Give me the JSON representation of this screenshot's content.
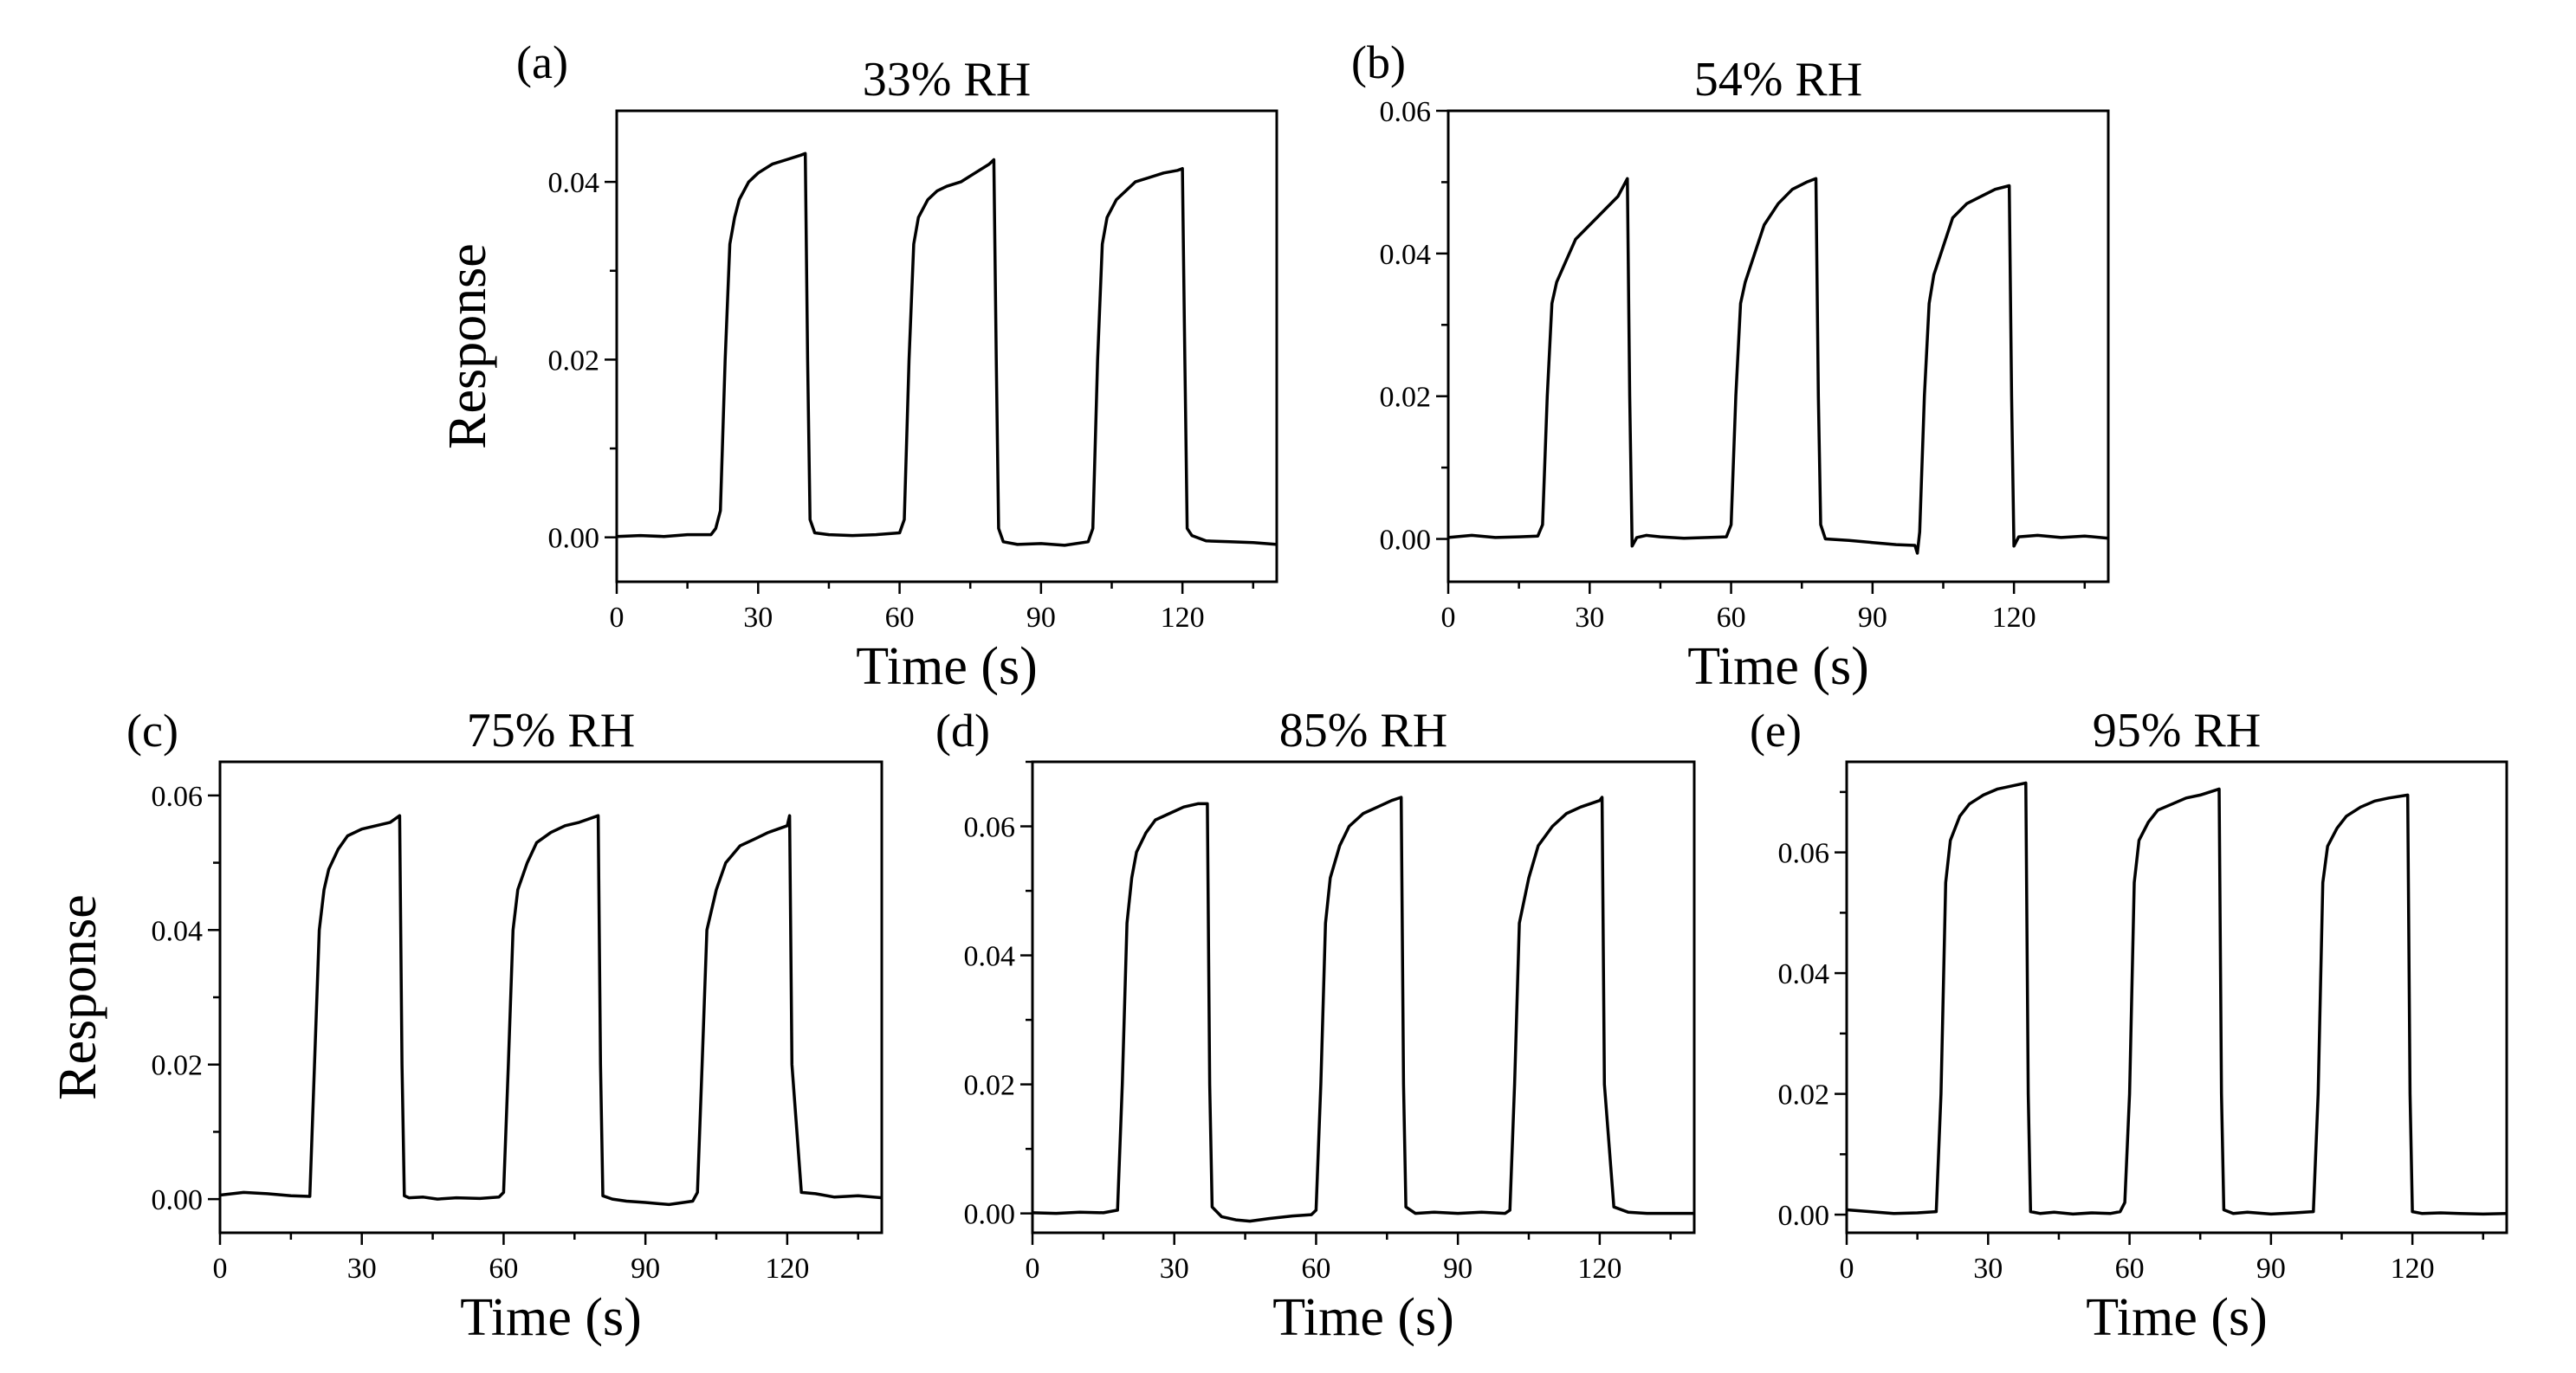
{
  "figure": {
    "description_hidden": true
  },
  "chart_data": [
    {
      "panel": "(a)",
      "type": "line",
      "title": "33% RH",
      "xlabel": "Time (s)",
      "ylabel": "Response",
      "xlim": [
        0,
        140
      ],
      "ylim": [
        -0.005,
        0.048
      ],
      "xticks": [
        0,
        30,
        60,
        90,
        120
      ],
      "yticks": [
        0.0,
        0.02,
        0.04
      ],
      "ytick_labels": [
        "0.00",
        "0.02",
        "0.04"
      ],
      "series": [
        {
          "name": "33% RH",
          "x": [
            0,
            5,
            10,
            15,
            20,
            21,
            22,
            23,
            24,
            25,
            26,
            28,
            30,
            33,
            36,
            39,
            40,
            40.5,
            41,
            42,
            45,
            50,
            55,
            60,
            61,
            62,
            63,
            64,
            66,
            68,
            70,
            73,
            76,
            79,
            80,
            80.5,
            81,
            82,
            85,
            90,
            95,
            100,
            101,
            102,
            103,
            104,
            106,
            108,
            110,
            113,
            116,
            119,
            120,
            120.5,
            121,
            122,
            125,
            130,
            135,
            140
          ],
          "y": [
            0.0001,
            0.0002,
            0.0001,
            0.0003,
            0.0003,
            0.001,
            0.003,
            0.02,
            0.033,
            0.036,
            0.038,
            0.04,
            0.041,
            0.042,
            0.0425,
            0.043,
            0.0432,
            0.02,
            0.002,
            0.0005,
            0.0003,
            0.0002,
            0.0003,
            0.0005,
            0.002,
            0.02,
            0.033,
            0.036,
            0.038,
            0.039,
            0.0395,
            0.04,
            0.041,
            0.042,
            0.0425,
            0.02,
            0.001,
            -0.0005,
            -0.0008,
            -0.0007,
            -0.0009,
            -0.0005,
            0.001,
            0.02,
            0.033,
            0.036,
            0.038,
            0.039,
            0.04,
            0.0405,
            0.041,
            0.0413,
            0.0415,
            0.02,
            0.001,
            0.0002,
            -0.0004,
            -0.0005,
            -0.0006,
            -0.0008
          ]
        }
      ]
    },
    {
      "panel": "(b)",
      "type": "line",
      "title": "54% RH",
      "xlabel": "Time (s)",
      "ylabel": "",
      "xlim": [
        0,
        140
      ],
      "ylim": [
        -0.006,
        0.06
      ],
      "xticks": [
        0,
        30,
        60,
        90,
        120
      ],
      "yticks": [
        0.0,
        0.02,
        0.04,
        0.06
      ],
      "ytick_labels": [
        "0.00",
        "0.02",
        "0.04",
        "0.06"
      ],
      "series": [
        {
          "name": "54% RH",
          "x": [
            0,
            5,
            10,
            15,
            19,
            20,
            21,
            22,
            23,
            25,
            27,
            30,
            33,
            36,
            38,
            38.5,
            39,
            40,
            42,
            45,
            50,
            55,
            59,
            60,
            61,
            62,
            63,
            65,
            67,
            70,
            73,
            76,
            78,
            78.5,
            79,
            80,
            85,
            90,
            95,
            99,
            99.5,
            100,
            101,
            102,
            103,
            105,
            107,
            110,
            113,
            116,
            119,
            119.5,
            120,
            121,
            125,
            130,
            135,
            140
          ],
          "y": [
            0.0002,
            0.0005,
            0.0002,
            0.0003,
            0.0004,
            0.002,
            0.02,
            0.033,
            0.036,
            0.039,
            0.042,
            0.044,
            0.046,
            0.048,
            0.0505,
            0.02,
            -0.001,
            0.0002,
            0.0005,
            0.0003,
            0.0001,
            0.0002,
            0.0003,
            0.002,
            0.02,
            0.033,
            0.036,
            0.04,
            0.044,
            0.047,
            0.049,
            0.05,
            0.0505,
            0.02,
            0.002,
            0.0,
            -0.0002,
            -0.0005,
            -0.0008,
            -0.0009,
            -0.002,
            0.001,
            0.02,
            0.033,
            0.037,
            0.041,
            0.045,
            0.047,
            0.048,
            0.049,
            0.0495,
            0.02,
            -0.001,
            0.0003,
            0.0005,
            0.0002,
            0.0004,
            0.0001
          ]
        }
      ]
    },
    {
      "panel": "(c)",
      "type": "line",
      "title": "75% RH",
      "xlabel": "Time (s)",
      "ylabel": "Response",
      "xlim": [
        0,
        140
      ],
      "ylim": [
        -0.005,
        0.065
      ],
      "xticks": [
        0,
        30,
        60,
        90,
        120
      ],
      "yticks": [
        0.0,
        0.02,
        0.04,
        0.06
      ],
      "ytick_labels": [
        "0.00",
        "0.02",
        "0.04",
        "0.06"
      ],
      "series": [
        {
          "name": "75% RH",
          "x": [
            0,
            5,
            10,
            15,
            19,
            20,
            21,
            22,
            23,
            25,
            27,
            30,
            33,
            36,
            38,
            38.5,
            39,
            40,
            43,
            46,
            50,
            55,
            59,
            60,
            61,
            62,
            63,
            65,
            67,
            70,
            73,
            76,
            80,
            80.5,
            81,
            83,
            86,
            90,
            95,
            100,
            101,
            102,
            103,
            105,
            107,
            110,
            113,
            116,
            120,
            120.5,
            121,
            123,
            126,
            130,
            135,
            140
          ],
          "y": [
            0.0006,
            0.001,
            0.0008,
            0.0005,
            0.0004,
            0.02,
            0.04,
            0.046,
            0.049,
            0.052,
            0.054,
            0.055,
            0.0555,
            0.056,
            0.057,
            0.02,
            0.0005,
            0.0002,
            0.0003,
            0.0,
            0.0002,
            0.0001,
            0.0003,
            0.001,
            0.02,
            0.04,
            0.046,
            0.05,
            0.053,
            0.0545,
            0.0555,
            0.056,
            0.057,
            0.02,
            0.0005,
            0.0,
            -0.0003,
            -0.0005,
            -0.0008,
            -0.0003,
            0.001,
            0.02,
            0.04,
            0.046,
            0.05,
            0.0525,
            0.0535,
            0.0545,
            0.0555,
            0.057,
            0.02,
            0.001,
            0.0008,
            0.0003,
            0.0005,
            0.0002
          ]
        }
      ]
    },
    {
      "panel": "(d)",
      "type": "line",
      "title": "85% RH",
      "xlabel": "Time (s)",
      "ylabel": "",
      "xlim": [
        0,
        140
      ],
      "ylim": [
        -0.003,
        0.07
      ],
      "xticks": [
        0,
        30,
        60,
        90,
        120
      ],
      "yticks": [
        0.0,
        0.02,
        0.04,
        0.06
      ],
      "ytick_labels": [
        "0.00",
        "0.02",
        "0.04",
        "0.06"
      ],
      "series": [
        {
          "name": "85% RH",
          "x": [
            0,
            5,
            10,
            15,
            18,
            19,
            20,
            21,
            22,
            24,
            26,
            29,
            32,
            35,
            37,
            37.5,
            38,
            40,
            43,
            46,
            50,
            55,
            59,
            60,
            61,
            62,
            63,
            65,
            67,
            70,
            73,
            76,
            78,
            78.5,
            79,
            81,
            85,
            90,
            95,
            100,
            101,
            102,
            103,
            105,
            107,
            110,
            113,
            116,
            120,
            120.5,
            121,
            123,
            126,
            130,
            135,
            140
          ],
          "y": [
            0.0001,
            0.0,
            0.0002,
            0.0001,
            0.0005,
            0.02,
            0.045,
            0.052,
            0.056,
            0.059,
            0.061,
            0.062,
            0.063,
            0.0635,
            0.0635,
            0.02,
            0.001,
            -0.0005,
            -0.001,
            -0.0012,
            -0.0008,
            -0.0004,
            -0.0002,
            0.0005,
            0.02,
            0.045,
            0.052,
            0.057,
            0.06,
            0.062,
            0.063,
            0.064,
            0.0645,
            0.02,
            0.001,
            0.0,
            0.0002,
            0.0,
            0.0002,
            0.0,
            0.0005,
            0.02,
            0.045,
            0.052,
            0.057,
            0.06,
            0.062,
            0.063,
            0.064,
            0.0645,
            0.02,
            0.001,
            0.0002,
            0.0,
            0.0,
            0.0
          ]
        }
      ]
    },
    {
      "panel": "(e)",
      "type": "line",
      "title": "95% RH",
      "xlabel": "Time (s)",
      "ylabel": "",
      "xlim": [
        0,
        140
      ],
      "ylim": [
        -0.003,
        0.075
      ],
      "xticks": [
        0,
        30,
        60,
        90,
        120
      ],
      "yticks": [
        0.0,
        0.02,
        0.04,
        0.06
      ],
      "ytick_labels": [
        "0.00",
        "0.02",
        "0.04",
        "0.06"
      ],
      "series": [
        {
          "name": "95% RH",
          "x": [
            0,
            5,
            10,
            15,
            19,
            20,
            21,
            22,
            24,
            26,
            29,
            32,
            35,
            38,
            38.5,
            39,
            41,
            44,
            48,
            52,
            56,
            58,
            59,
            60,
            61,
            62,
            64,
            66,
            69,
            72,
            75,
            79,
            79.5,
            80,
            82,
            85,
            90,
            95,
            99,
            100,
            101,
            102,
            104,
            106,
            109,
            112,
            115,
            119,
            119.5,
            120,
            122,
            126,
            130,
            135,
            140
          ],
          "y": [
            0.0008,
            0.0005,
            0.0002,
            0.0003,
            0.0005,
            0.02,
            0.055,
            0.062,
            0.066,
            0.068,
            0.0695,
            0.0705,
            0.071,
            0.0715,
            0.02,
            0.0005,
            0.0002,
            0.0004,
            0.0001,
            0.0003,
            0.0002,
            0.0005,
            0.002,
            0.02,
            0.055,
            0.062,
            0.065,
            0.067,
            0.068,
            0.069,
            0.0695,
            0.0705,
            0.02,
            0.0008,
            0.0002,
            0.0004,
            0.0001,
            0.0003,
            0.0005,
            0.02,
            0.055,
            0.061,
            0.064,
            0.066,
            0.0675,
            0.0685,
            0.069,
            0.0695,
            0.02,
            0.0005,
            0.0002,
            0.0003,
            0.0002,
            0.0001,
            0.0002
          ]
        }
      ]
    }
  ]
}
